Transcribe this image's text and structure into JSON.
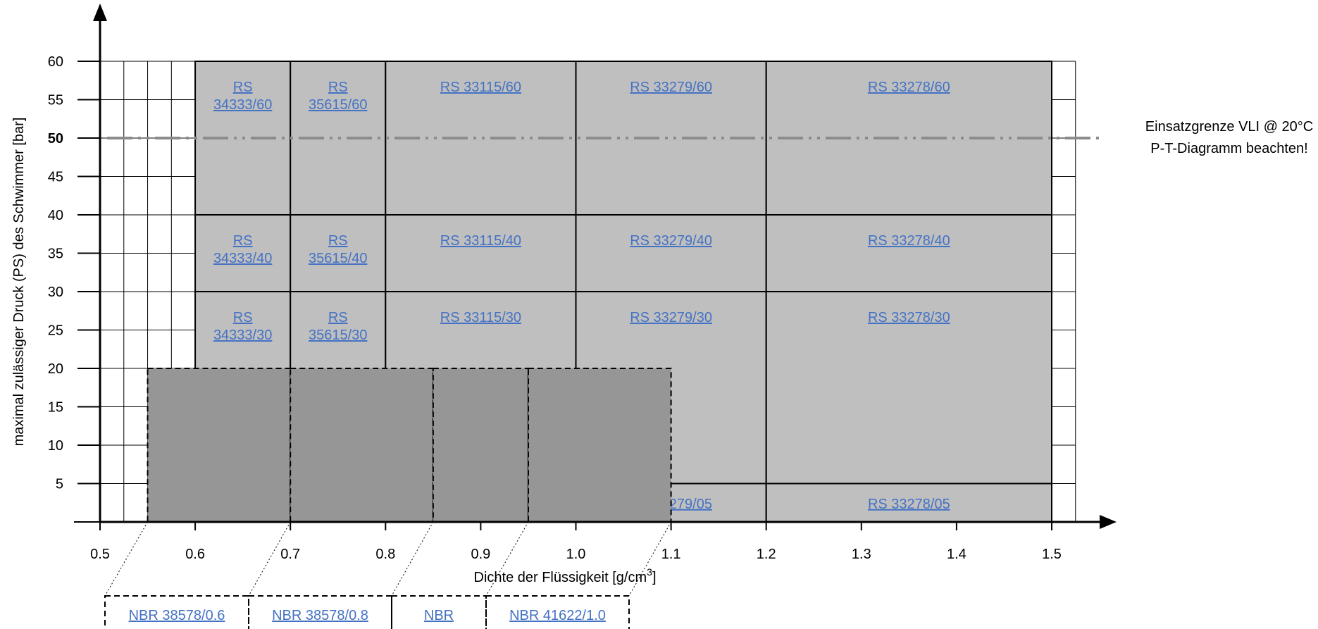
{
  "chart_data": {
    "type": "area",
    "xlabel": "Dichte der Flüssigkeit [g/cm³]",
    "xlabel_main": "Dichte der Flüssigkeit [g/cm",
    "xlabel_sup": "3",
    "xlabel_end": "]",
    "ylabel": "maximal zulässiger Druck (PS) des Schwimmer [bar]",
    "xlim": [
      0.5,
      1.5
    ],
    "ylim": [
      0,
      60
    ],
    "x_ticks": [
      "0.5",
      "0.6",
      "0.7",
      "0.8",
      "0.9",
      "1.0",
      "1.1",
      "1.2",
      "1.3",
      "1.4",
      "1.5"
    ],
    "y_ticks": [
      "5",
      "10",
      "15",
      "20",
      "25",
      "30",
      "35",
      "40",
      "45",
      "50",
      "55",
      "60"
    ],
    "y_bold_tick": "50",
    "grid": true,
    "limit_line": {
      "y": 50,
      "label_line1": "Einsatzgrenze VLI @ 20°C",
      "label_line2": "P-T-Diagramm beachten!"
    },
    "rs_regions": [
      {
        "x0": 0.6,
        "x1": 0.7,
        "y0": 40,
        "y1": 60,
        "line1": "RS",
        "line2": "34333/60"
      },
      {
        "x0": 0.7,
        "x1": 0.8,
        "y0": 40,
        "y1": 60,
        "line1": "RS",
        "line2": "35615/60"
      },
      {
        "x0": 0.8,
        "x1": 1.0,
        "y0": 40,
        "y1": 60,
        "line1": "RS 33115/60",
        "line2": ""
      },
      {
        "x0": 1.0,
        "x1": 1.2,
        "y0": 40,
        "y1": 60,
        "line1": "RS 33279/60",
        "line2": ""
      },
      {
        "x0": 1.2,
        "x1": 1.5,
        "y0": 40,
        "y1": 60,
        "line1": "RS 33278/60",
        "line2": ""
      },
      {
        "x0": 0.6,
        "x1": 0.7,
        "y0": 30,
        "y1": 40,
        "line1": "RS",
        "line2": "34333/40"
      },
      {
        "x0": 0.7,
        "x1": 0.8,
        "y0": 30,
        "y1": 40,
        "line1": "RS",
        "line2": "35615/40"
      },
      {
        "x0": 0.8,
        "x1": 1.0,
        "y0": 30,
        "y1": 40,
        "line1": "RS 33115/40",
        "line2": ""
      },
      {
        "x0": 1.0,
        "x1": 1.2,
        "y0": 30,
        "y1": 40,
        "line1": "RS 33279/40",
        "line2": ""
      },
      {
        "x0": 1.2,
        "x1": 1.5,
        "y0": 30,
        "y1": 40,
        "line1": "RS 33278/40",
        "line2": ""
      },
      {
        "x0": 0.6,
        "x1": 0.7,
        "y0": 0,
        "y1": 30,
        "line1": "RS",
        "line2": "34333/30"
      },
      {
        "x0": 0.7,
        "x1": 0.8,
        "y0": 0,
        "y1": 30,
        "line1": "RS",
        "line2": "35615/30"
      },
      {
        "x0": 0.8,
        "x1": 1.0,
        "y0": 0,
        "y1": 30,
        "line1": "RS 33115/30",
        "line2": ""
      },
      {
        "x0": 1.0,
        "x1": 1.2,
        "y0": 5,
        "y1": 30,
        "line1": "RS 33279/30",
        "line2": ""
      },
      {
        "x0": 1.2,
        "x1": 1.5,
        "y0": 5,
        "y1": 30,
        "line1": "RS 33278/30",
        "line2": ""
      },
      {
        "x0": 1.0,
        "x1": 1.2,
        "y0": 0,
        "y1": 5,
        "line1": "RS 33279/05",
        "line2": ""
      },
      {
        "x0": 1.2,
        "x1": 1.5,
        "y0": 0,
        "y1": 5,
        "line1": "RS 33278/05",
        "line2": ""
      }
    ],
    "nbr_regions": [
      {
        "x0": 0.55,
        "x1": 0.7,
        "y0": 0,
        "y1": 20,
        "label": "NBR 38578/0.6"
      },
      {
        "x0": 0.7,
        "x1": 0.85,
        "y0": 0,
        "y1": 20,
        "label": "NBR 38578/0.8"
      },
      {
        "x0": 0.85,
        "x1": 0.95,
        "y0": 0,
        "y1": 20,
        "label": "NBR"
      },
      {
        "x0": 0.95,
        "x1": 1.1,
        "y0": 0,
        "y1": 20,
        "label": "NBR 41622/1.0"
      }
    ],
    "colors": {
      "rs_fill": "#bfbfbf",
      "nbr_fill": "#969696",
      "link": "#4472c4",
      "limit_line": "#8c8c8c",
      "grid": "#000000",
      "text": "#000000"
    }
  }
}
